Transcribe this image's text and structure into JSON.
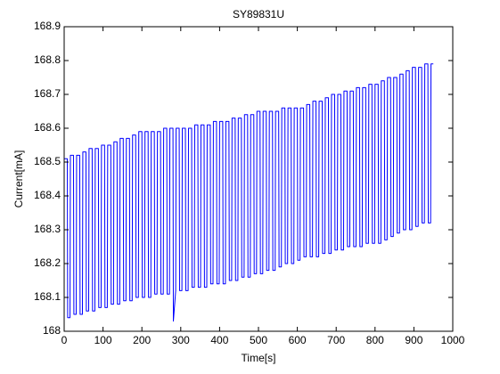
{
  "chart_data": {
    "type": "line",
    "title": "SY89831U",
    "x_label": "Time[s]",
    "y_label": "Current[mA]",
    "color": "#0000ff",
    "grid": false,
    "xlim": [
      0,
      1000
    ],
    "xticks": [
      0,
      100,
      200,
      300,
      400,
      500,
      600,
      700,
      800,
      900,
      1000
    ],
    "ylim": [
      168,
      168.9
    ],
    "yticks": [
      168,
      168.1,
      168.2,
      168.3,
      168.4,
      168.5,
      168.6,
      168.7,
      168.8,
      168.9
    ],
    "x": [
      0,
      8,
      9,
      15,
      16,
      24,
      25,
      31,
      32,
      40,
      41,
      47,
      48,
      56,
      57,
      63,
      64,
      72,
      73,
      79,
      80,
      88,
      89,
      95,
      96,
      104,
      105,
      111,
      112,
      120,
      121,
      127,
      128,
      136,
      137,
      143,
      144,
      152,
      153,
      159,
      160,
      168,
      169,
      175,
      176,
      184,
      185,
      191,
      192,
      200,
      201,
      207,
      208,
      216,
      217,
      223,
      224,
      232,
      233,
      239,
      240,
      248,
      249,
      255,
      256,
      264,
      265,
      271,
      272,
      280,
      281,
      287,
      288,
      296,
      297,
      303,
      304,
      312,
      313,
      319,
      320,
      328,
      329,
      335,
      336,
      344,
      345,
      351,
      352,
      360,
      361,
      367,
      368,
      376,
      377,
      383,
      384,
      392,
      393,
      399,
      400,
      408,
      409,
      415,
      416,
      424,
      425,
      431,
      432,
      440,
      441,
      447,
      448,
      456,
      457,
      463,
      464,
      472,
      473,
      479,
      480,
      488,
      489,
      495,
      496,
      504,
      505,
      511,
      512,
      520,
      521,
      527,
      528,
      536,
      537,
      543,
      544,
      552,
      553,
      559,
      560,
      568,
      569,
      575,
      576,
      584,
      585,
      591,
      592,
      600,
      601,
      607,
      608,
      616,
      617,
      623,
      624,
      632,
      633,
      639,
      640,
      648,
      649,
      655,
      656,
      664,
      665,
      671,
      672,
      680,
      681,
      687,
      688,
      696,
      697,
      703,
      704,
      712,
      713,
      719,
      720,
      728,
      729,
      735,
      736,
      744,
      745,
      751,
      752,
      760,
      761,
      767,
      768,
      776,
      777,
      783,
      784,
      792,
      793,
      799,
      800,
      808,
      809,
      815,
      816,
      824,
      825,
      831,
      832,
      840,
      841,
      847,
      848,
      856,
      857,
      863,
      864,
      872,
      873,
      879,
      880,
      888,
      889,
      895,
      896,
      904,
      905,
      911,
      912,
      920,
      921,
      927,
      928,
      936,
      937,
      943,
      944,
      950
    ],
    "values": [
      168.51,
      168.51,
      168.04,
      168.04,
      168.52,
      168.52,
      168.05,
      168.05,
      168.52,
      168.52,
      168.05,
      168.05,
      168.53,
      168.53,
      168.06,
      168.06,
      168.54,
      168.54,
      168.06,
      168.06,
      168.54,
      168.54,
      168.07,
      168.07,
      168.55,
      168.55,
      168.07,
      168.07,
      168.55,
      168.55,
      168.08,
      168.08,
      168.56,
      168.56,
      168.08,
      168.08,
      168.57,
      168.57,
      168.09,
      168.09,
      168.57,
      168.57,
      168.09,
      168.09,
      168.58,
      168.58,
      168.1,
      168.1,
      168.59,
      168.59,
      168.1,
      168.1,
      168.59,
      168.59,
      168.1,
      168.1,
      168.59,
      168.59,
      168.11,
      168.11,
      168.59,
      168.59,
      168.11,
      168.11,
      168.6,
      168.6,
      168.11,
      168.11,
      168.6,
      168.6,
      168.03,
      168.12,
      168.6,
      168.6,
      168.12,
      168.12,
      168.6,
      168.6,
      168.12,
      168.12,
      168.6,
      168.6,
      168.13,
      168.13,
      168.61,
      168.61,
      168.13,
      168.13,
      168.61,
      168.61,
      168.13,
      168.13,
      168.61,
      168.61,
      168.14,
      168.14,
      168.62,
      168.62,
      168.14,
      168.14,
      168.62,
      168.62,
      168.14,
      168.14,
      168.62,
      168.62,
      168.15,
      168.15,
      168.63,
      168.63,
      168.15,
      168.15,
      168.63,
      168.63,
      168.16,
      168.16,
      168.64,
      168.64,
      168.16,
      168.16,
      168.64,
      168.64,
      168.17,
      168.17,
      168.65,
      168.65,
      168.17,
      168.17,
      168.65,
      168.65,
      168.18,
      168.18,
      168.65,
      168.65,
      168.18,
      168.18,
      168.65,
      168.65,
      168.19,
      168.19,
      168.66,
      168.66,
      168.2,
      168.2,
      168.66,
      168.66,
      168.2,
      168.2,
      168.66,
      168.66,
      168.21,
      168.21,
      168.66,
      168.66,
      168.22,
      168.22,
      168.67,
      168.67,
      168.22,
      168.22,
      168.68,
      168.68,
      168.22,
      168.22,
      168.68,
      168.68,
      168.23,
      168.23,
      168.69,
      168.69,
      168.23,
      168.23,
      168.7,
      168.7,
      168.24,
      168.24,
      168.7,
      168.7,
      168.24,
      168.24,
      168.71,
      168.71,
      168.25,
      168.25,
      168.71,
      168.71,
      168.25,
      168.25,
      168.72,
      168.72,
      168.25,
      168.25,
      168.72,
      168.72,
      168.26,
      168.26,
      168.73,
      168.73,
      168.26,
      168.26,
      168.73,
      168.73,
      168.26,
      168.26,
      168.74,
      168.74,
      168.27,
      168.27,
      168.75,
      168.75,
      168.28,
      168.28,
      168.75,
      168.75,
      168.29,
      168.29,
      168.76,
      168.76,
      168.3,
      168.3,
      168.77,
      168.77,
      168.3,
      168.3,
      168.78,
      168.78,
      168.31,
      168.31,
      168.78,
      168.78,
      168.32,
      168.32,
      168.79,
      168.79,
      168.32,
      168.32,
      168.79,
      168.79
    ]
  }
}
